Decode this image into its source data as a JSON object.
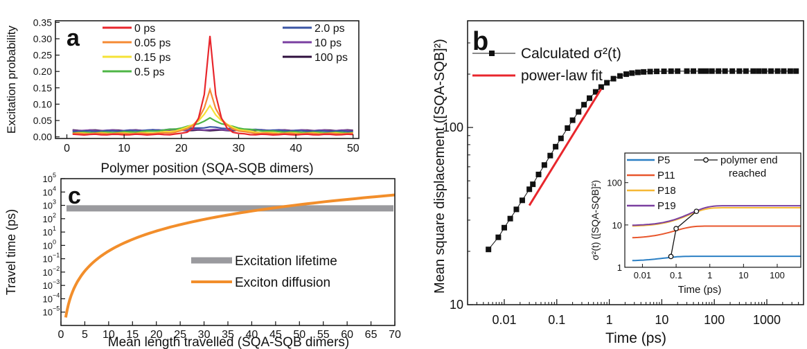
{
  "chart_data": [
    {
      "panel": "a",
      "type": "line",
      "xlabel": "Polymer position (SQA-SQB dimers)",
      "ylabel": "Excitation probability",
      "xlim": [
        -2,
        51
      ],
      "ylim": [
        -0.005,
        0.355
      ],
      "xticks": [
        0,
        10,
        20,
        30,
        40,
        50
      ],
      "yticks": [
        0.0,
        0.05,
        0.1,
        0.15,
        0.2,
        0.25,
        0.3,
        0.35
      ],
      "center": 25,
      "grid": false,
      "legend": "top, two columns",
      "series": [
        {
          "name": "0 ps",
          "color": "#e8262c",
          "peak": 0.31,
          "base": 0.007,
          "width": 1.1
        },
        {
          "name": "0.05 ps",
          "color": "#f58a33",
          "peak": 0.145,
          "base": 0.01,
          "width": 1.8
        },
        {
          "name": "0.15 ps",
          "color": "#f5e235",
          "peak": 0.095,
          "base": 0.011,
          "width": 2.6
        },
        {
          "name": "0.5 ps",
          "color": "#4eb545",
          "peak": 0.057,
          "base": 0.013,
          "width": 4.5
        },
        {
          "name": "2.0 ps",
          "color": "#3a55a4",
          "peak": 0.03,
          "base": 0.016,
          "width": 9
        },
        {
          "name": "10 ps",
          "color": "#7a3fa0",
          "peak": 0.022,
          "base": 0.019,
          "width": 15
        },
        {
          "name": "100 ps",
          "color": "#2e0f3c",
          "peak": 0.02,
          "base": 0.02,
          "width": 20
        }
      ]
    },
    {
      "panel": "b",
      "type": "scatter",
      "xlabel": "Time (ps)",
      "ylabel": "Mean square displacement ([SQA-SQB]²)",
      "scale": "log-log",
      "xlim": [
        0.002,
        5000
      ],
      "ylim": [
        10,
        400
      ],
      "xticks": [
        "0.01",
        "0.1",
        "1",
        "10",
        "100",
        "1000"
      ],
      "yticks": [
        "10",
        "100"
      ],
      "legend": "top-left",
      "series": [
        {
          "name": "Calculated σ²(t)",
          "color": "#111111",
          "x": [
            0.005,
            0.0077,
            0.01,
            0.013,
            0.017,
            0.022,
            0.03,
            0.035,
            0.045,
            0.058,
            0.075,
            0.095,
            0.12,
            0.16,
            0.2,
            0.26,
            0.33,
            0.42,
            0.55,
            0.7,
            0.9,
            1.2,
            1.6,
            2.1,
            2.7,
            3.5,
            4.5,
            6,
            8,
            11,
            15,
            20,
            30,
            40,
            55,
            70,
            90,
            120,
            160,
            220,
            300,
            400,
            550,
            700,
            900,
            1200,
            1600,
            2100,
            2800,
            3600
          ],
          "y": [
            20.5,
            24,
            27.2,
            30.6,
            34.5,
            38.8,
            44.8,
            47.8,
            54.3,
            61.4,
            69.4,
            77.9,
            86.8,
            99.2,
            109.9,
            122.5,
            134.4,
            146.4,
            158.8,
            169.1,
            178.8,
            188.5,
            195.3,
            199.9,
            202.7,
            204.6,
            205.8,
            206.7,
            207.2,
            207.5,
            207.8,
            207.9,
            208,
            208,
            208,
            208,
            208,
            208,
            208,
            208,
            208,
            208,
            208,
            208,
            208,
            208,
            208,
            208,
            208,
            208
          ]
        },
        {
          "name": "power-law fit",
          "color": "#e8262c",
          "x": [
            0.03,
            0.7
          ],
          "y": [
            36.3,
            165
          ]
        }
      ],
      "inset": {
        "type": "line",
        "xlabel": "Time (ps)",
        "ylabel": "σ²(t) ([SQA-SQB]²)",
        "scale": "log-log",
        "xlim": [
          0.003,
          500
        ],
        "ylim": [
          1,
          500
        ],
        "xticks": [
          "0.01",
          "0.1",
          "1",
          "10",
          "100"
        ],
        "yticks": [
          "1",
          "10",
          "100"
        ],
        "end_marker_label": "polymer end reached",
        "end_points": {
          "x": [
            0.07,
            0.1,
            0.4
          ],
          "y": [
            1.8,
            8.2,
            21
          ]
        },
        "series": [
          {
            "name": "P5",
            "color": "#2a7fc4",
            "plateau": 1.82,
            "start": 1.4,
            "tau": 0.05
          },
          {
            "name": "P11",
            "color": "#e8562c",
            "plateau": 9.4,
            "start": 4.8,
            "tau": 0.12
          },
          {
            "name": "P18",
            "color": "#f5b835",
            "plateau": 25.5,
            "start": 9.2,
            "tau": 0.35
          },
          {
            "name": "P19",
            "color": "#7a3fa0",
            "plateau": 28.5,
            "start": 9.6,
            "tau": 0.4
          }
        ]
      }
    },
    {
      "panel": "c",
      "type": "line",
      "xlabel": "Mean length travelled (SQA-SQB dimers)",
      "ylabel": "Travel time (ps)",
      "scale": "log-y",
      "xlim": [
        0,
        70
      ],
      "ylim_exp": [
        -6,
        5
      ],
      "xticks": [
        0,
        5,
        10,
        15,
        20,
        25,
        30,
        35,
        40,
        45,
        50,
        55,
        60,
        65,
        70
      ],
      "yticks_exp": [
        -5,
        -4,
        -3,
        -2,
        -1,
        0,
        1,
        2,
        3,
        4,
        5
      ],
      "legend": "lower-right",
      "series": [
        {
          "name": "Excitation lifetime",
          "color": "#9a9a9e",
          "value": 600
        },
        {
          "name": "Exciton diffusion",
          "color": "#f28e2b",
          "x0": 1,
          "y0": 4e-06,
          "x1": 70,
          "y1": 6000
        }
      ]
    }
  ],
  "labels": {
    "a": "a",
    "b": "b",
    "c": "c"
  }
}
